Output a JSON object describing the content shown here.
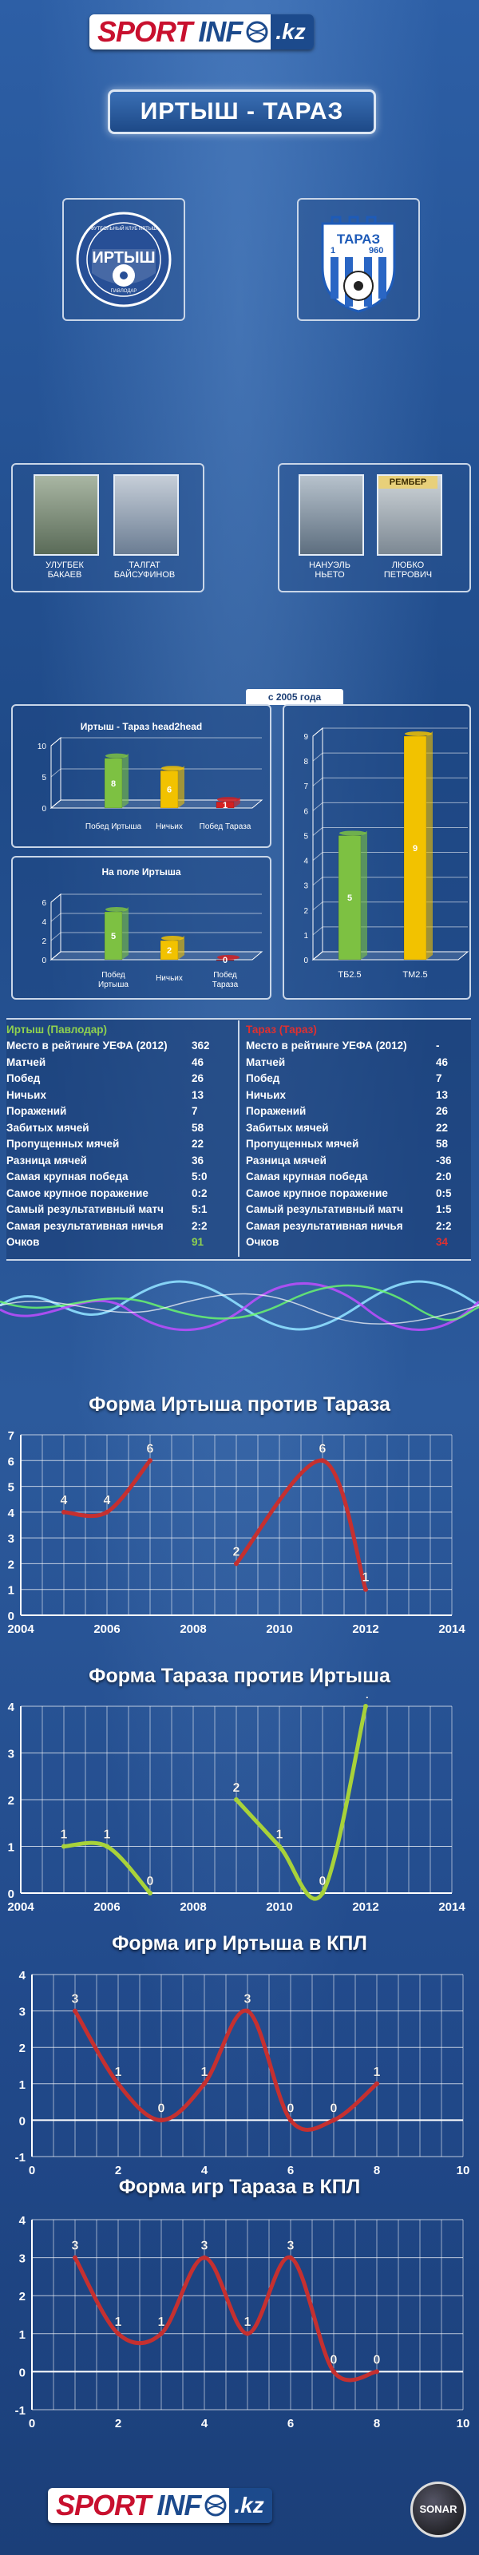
{
  "header": {
    "brand_sport": "SPORT",
    "brand_info": "INF",
    "brand_kz": ".kz",
    "match_title": "ИРТЫШ - ТАРАЗ"
  },
  "teams": {
    "home": {
      "emblem_name": "ИРТЫШ",
      "emblem_ring": "ФУТБОЛЬНЫЙ КЛУБ ИРТЫШ",
      "emblem_city": "ПАВЛОДАР"
    },
    "away": {
      "emblem_name": "ТАРАЗ",
      "emblem_year_left": "1",
      "emblem_year_right": "960"
    }
  },
  "people": {
    "home": [
      {
        "name_line1": "УЛУГБЕК",
        "name_line2": "БАКАЕВ"
      },
      {
        "name_line1": "ТАЛГАТ",
        "name_line2": "БАЙСУФИНОВ"
      }
    ],
    "away": [
      {
        "name_line1": "НАНУЭЛЬ",
        "name_line2": "НЬЕТО"
      },
      {
        "name_line1": "ЛЮБКО",
        "name_line2": "ПЕТРОВИЧ"
      }
    ],
    "away_badge": "РЕМБЕР"
  },
  "since_label": "с 2005 года",
  "chart_data": [
    {
      "type": "bar",
      "title": "Иртыш - Тараз head2head",
      "categories": [
        "Побед Иртыша",
        "Ничьих",
        "Побед Тараза"
      ],
      "values": [
        8,
        6,
        1
      ],
      "ylim": [
        0,
        10
      ],
      "yticks": [
        0,
        5,
        10
      ],
      "colors": [
        "#7dc142",
        "#f2c200",
        "#d42020"
      ]
    },
    {
      "type": "bar",
      "title": "На поле Иртыша",
      "categories": [
        "Побед Иртыша",
        "Ничьих",
        "Побед Тараза"
      ],
      "values": [
        5,
        2,
        0
      ],
      "ylim": [
        0,
        6
      ],
      "yticks": [
        0,
        2,
        4,
        6
      ],
      "colors": [
        "#7dc142",
        "#f2c200",
        "#d42020"
      ]
    },
    {
      "type": "bar",
      "title": "",
      "categories": [
        "ТБ2.5",
        "ТМ2.5"
      ],
      "values": [
        5,
        9
      ],
      "ylim": [
        0,
        9
      ],
      "yticks": [
        0,
        1,
        2,
        3,
        4,
        5,
        6,
        7,
        8,
        9
      ],
      "colors": [
        "#7dc142",
        "#f2c200"
      ]
    },
    {
      "type": "line",
      "title": "Форма Иртыша против Тараза",
      "xlim": [
        2004,
        2014
      ],
      "ylim": [
        0,
        7
      ],
      "xticks": [
        2004,
        2006,
        2008,
        2010,
        2012,
        2014
      ],
      "yticks": [
        0,
        1,
        2,
        3,
        4,
        5,
        6,
        7
      ],
      "segments": [
        {
          "x": [
            2005,
            2006,
            2007
          ],
          "y": [
            4,
            4,
            6
          ]
        },
        {
          "x": [
            2009,
            2011,
            2012
          ],
          "y": [
            2,
            6,
            1
          ]
        }
      ],
      "color": "#c53030"
    },
    {
      "type": "line",
      "title": "Форма Тараза против Иртыша",
      "xlim": [
        2004,
        2014
      ],
      "ylim": [
        0,
        4
      ],
      "xticks": [
        2004,
        2006,
        2008,
        2010,
        2012,
        2014
      ],
      "yticks": [
        0,
        1,
        2,
        3,
        4
      ],
      "segments": [
        {
          "x": [
            2005,
            2006,
            2007
          ],
          "y": [
            1,
            1,
            0
          ]
        },
        {
          "x": [
            2009,
            2010,
            2011,
            2012
          ],
          "y": [
            2,
            1,
            0,
            4
          ]
        }
      ],
      "color": "#a8d23a"
    },
    {
      "type": "line",
      "title": "Форма игр Иртыша в КПЛ",
      "xlim": [
        0,
        10
      ],
      "ylim": [
        -1,
        4
      ],
      "xticks": [
        0,
        2,
        4,
        6,
        8,
        10
      ],
      "yticks": [
        -1,
        0,
        1,
        2,
        3,
        4
      ],
      "segments": [
        {
          "x": [
            1,
            2,
            3,
            4,
            5,
            6,
            7,
            8
          ],
          "y": [
            3,
            1,
            0,
            1,
            3,
            0,
            0,
            1
          ]
        }
      ],
      "color": "#c53030"
    },
    {
      "type": "line",
      "title": "Форма игр Тараза в КПЛ",
      "xlim": [
        0,
        10
      ],
      "ylim": [
        -1,
        4
      ],
      "xticks": [
        0,
        2,
        4,
        6,
        8,
        10
      ],
      "yticks": [
        -1,
        0,
        1,
        2,
        3,
        4
      ],
      "segments": [
        {
          "x": [
            1,
            2,
            3,
            4,
            5,
            6,
            7,
            8
          ],
          "y": [
            3,
            1,
            1,
            3,
            1,
            3,
            0,
            0
          ]
        }
      ],
      "color": "#c53030"
    }
  ],
  "stats": {
    "home": {
      "header": "Иртыш (Павлодар)",
      "rows": [
        {
          "label": "Место в рейтинге УЕФА (2012)",
          "value": "362"
        },
        {
          "label": "Матчей",
          "value": "46"
        },
        {
          "label": "Побед",
          "value": "26"
        },
        {
          "label": "Ничьих",
          "value": "13"
        },
        {
          "label": "Поражений",
          "value": "7"
        },
        {
          "label": "Забитых мячей",
          "value": "58"
        },
        {
          "label": "Пропущенных мячей",
          "value": "22"
        },
        {
          "label": "Разница мячей",
          "value": "36"
        },
        {
          "label": "Самая крупная победа",
          "value": "5:0"
        },
        {
          "label": "Самое крупное поражение",
          "value": "0:2"
        },
        {
          "label": "Самый результативный матч",
          "value": "5:1"
        },
        {
          "label": "Самая результативная ничья",
          "value": "2:2"
        },
        {
          "label": "Очков",
          "value": "91"
        }
      ]
    },
    "away": {
      "header": "Тараз (Тараз)",
      "rows": [
        {
          "label": "Место в рейтинге УЕФА (2012)",
          "value": "-"
        },
        {
          "label": "Матчей",
          "value": "46"
        },
        {
          "label": "Побед",
          "value": "7"
        },
        {
          "label": "Ничьих",
          "value": "13"
        },
        {
          "label": "Поражений",
          "value": "26"
        },
        {
          "label": "Забитых мячей",
          "value": "22"
        },
        {
          "label": "Пропущенных мячей",
          "value": "58"
        },
        {
          "label": "Разница мячей",
          "value": "-36"
        },
        {
          "label": "Самая крупная победа",
          "value": "2:0"
        },
        {
          "label": "Самое крупное поражение",
          "value": "0:5"
        },
        {
          "label": "Самый результативный матч",
          "value": "1:5"
        },
        {
          "label": "Самая результативная ничья",
          "value": "2:2"
        },
        {
          "label": "Очков",
          "value": "34"
        }
      ]
    },
    "home_color": "#8fd14f",
    "away_color": "#e03030"
  },
  "footer": {
    "brand_sport": "SPORT",
    "brand_info": "INF",
    "brand_kz": ".kz",
    "sonar": "SONAR"
  }
}
